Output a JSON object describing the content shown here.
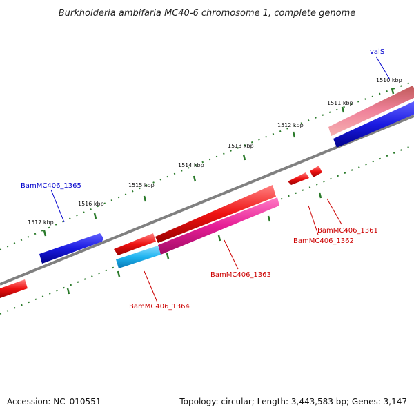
{
  "title": "Burkholderia ambifaria MC40-6 chromosome 1, complete genome",
  "footer": {
    "accession": "Accession: NC_010551",
    "summary": "Topology: circular; Length: 3,443,583 bp; Genes: 3,147"
  },
  "ticks": [
    "1510 kbp",
    "1511 kbp",
    "1512 kbp",
    "1513 kbp",
    "1514 kbp",
    "1515 kbp",
    "1516 kbp",
    "1517 kbp"
  ],
  "genes": {
    "valS": "valS",
    "bam1365": "BamMC406_1365",
    "bam1364": "BamMC406_1364",
    "bam1363": "BamMC406_1363",
    "bam1362": "BamMC406_1362",
    "bam1361": "BamMC406_1361"
  },
  "colors": {
    "forward_label": "#0000cc",
    "reverse_label": "#cc0000",
    "blue_gene": "#1a1ae0",
    "red_gene": "#ee1111",
    "pink_gene": "#f0829a",
    "magenta_gene": "#e61e96",
    "cyan_gene": "#1eb4f0",
    "tick_green": "#2a7a2a",
    "backbone": "#808080"
  }
}
